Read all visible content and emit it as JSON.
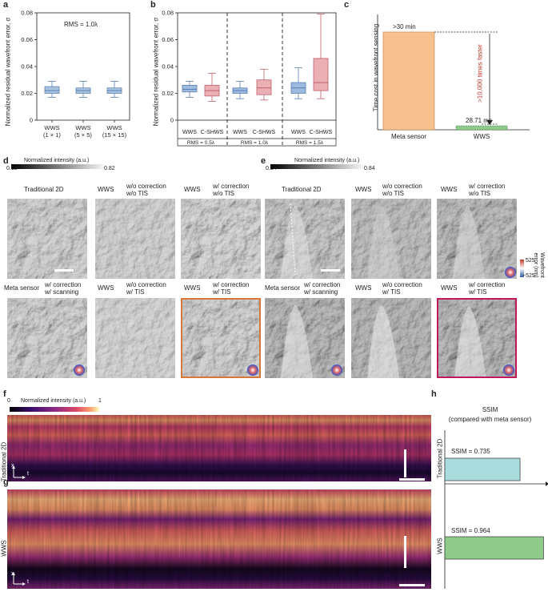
{
  "panel_labels": {
    "a": "a",
    "b": "b",
    "c": "c",
    "d": "d",
    "e": "e",
    "f": "f",
    "g": "g",
    "h": "h"
  },
  "shared": {
    "wfe_ylabel": "Normalized residual wavefront error, σ",
    "yticks": [
      "0",
      "0.02",
      "0.04",
      "0.06",
      "0.08"
    ]
  },
  "panel_a": {
    "rms_note": "RMS = 1.0λ",
    "xticks": [
      {
        "l1": "WWS",
        "l2": "(1 × 1)"
      },
      {
        "l1": "WWS",
        "l2": "(5 × 5)"
      },
      {
        "l1": "WWS",
        "l2": "(15 × 15)"
      }
    ]
  },
  "panel_b": {
    "xticks": [
      "WWS",
      "C-SHWS",
      "WWS",
      "C-SHWS",
      "WWS",
      "C-SHWS"
    ],
    "groups": [
      "RMS = 0.5λ",
      "RMS = 1.0λ",
      "RMS = 1.5λ"
    ]
  },
  "panel_c": {
    "ylabel": "Time cost in wavefront sensing",
    "bar1_label": ">30 min",
    "bar2_label": "28.71 ms",
    "arrow_label": ">10,000 times faster",
    "xticks": [
      "Meta sensor",
      "WWS"
    ]
  },
  "panel_d": {
    "colorbar_title": "Normalized intensity (a.u.)",
    "cbar_min": "0.18",
    "cbar_max": "0.82",
    "top_labels": [
      "Traditional 2D",
      "WWS",
      "w/o correction\nw/o TIS",
      "WWS",
      "w/ correction\nw/o TIS"
    ],
    "bottom_labels": [
      "Meta sensor",
      "w/ correction\nw/ scanning",
      "WWS",
      "w/o correction\nw/ TIS",
      "WWS",
      "w/ correction\nw/ TIS"
    ]
  },
  "panel_e": {
    "colorbar_title": "Normalized intensity (a.u.)",
    "cbar_min": "0.14",
    "cbar_max": "0.84",
    "top_labels": [
      "Traditional 2D",
      "WWS",
      "w/o correction\nw/o TIS",
      "WWS",
      "w/ correction\nw/o TIS"
    ],
    "bottom_labels": [
      "Meta sensor",
      "w/ correction\nw/ scanning",
      "WWS",
      "w/o correction\nw/ TIS",
      "WWS",
      "w/ correction\nw/ TIS"
    ],
    "wf_cbar_title": "Wavefront\nerror (nm)",
    "wf_cbar_max": "525",
    "wf_cbar_min": "−525"
  },
  "panel_f": {
    "colorbar_title": "Normalized intensity (a.u.)",
    "cbar_min": "0",
    "cbar_max": "1",
    "side_label": "Traditional 2D",
    "axis_x": "x",
    "axis_t": "t"
  },
  "panel_g": {
    "side_label": "WWS",
    "axis_x": "x",
    "axis_t": "t"
  },
  "panel_h": {
    "title": "SSIM",
    "subtitle": "(compared with meta sensor)",
    "bars": [
      {
        "label": "Traditional 2D",
        "value_text": "SSIM = 0.735",
        "value": 0.735,
        "color": "#a9dcdc"
      },
      {
        "label": "WWS",
        "value_text": "SSIM = 0.964",
        "value": 0.964,
        "color": "#8fca8a"
      }
    ]
  },
  "chart_data": [
    {
      "type": "box",
      "panel": "a",
      "ylabel": "Normalized residual wavefront error, σ",
      "ylim": [
        0,
        0.08
      ],
      "annotation": "RMS = 1.0λ",
      "categories": [
        "WWS (1 × 1)",
        "WWS (5 × 5)",
        "WWS (15 × 15)"
      ],
      "boxes": [
        {
          "min": 0.017,
          "q1": 0.02,
          "median": 0.022,
          "q3": 0.025,
          "max": 0.029
        },
        {
          "min": 0.017,
          "q1": 0.02,
          "median": 0.022,
          "q3": 0.024,
          "max": 0.029
        },
        {
          "min": 0.017,
          "q1": 0.02,
          "median": 0.022,
          "q3": 0.024,
          "max": 0.029
        }
      ]
    },
    {
      "type": "box",
      "panel": "b",
      "ylabel": "Normalized residual wavefront error, σ",
      "ylim": [
        0,
        0.08
      ],
      "groups": [
        "RMS = 0.5λ",
        "RMS = 1.0λ",
        "RMS = 1.5λ"
      ],
      "categories": [
        "WWS",
        "C-SHWS",
        "WWS",
        "C-SHWS",
        "WWS",
        "C-SHWS"
      ],
      "boxes": [
        {
          "min": 0.017,
          "q1": 0.021,
          "median": 0.023,
          "q3": 0.026,
          "max": 0.029
        },
        {
          "min": 0.014,
          "q1": 0.018,
          "median": 0.022,
          "q3": 0.026,
          "max": 0.035
        },
        {
          "min": 0.016,
          "q1": 0.02,
          "median": 0.022,
          "q3": 0.024,
          "max": 0.029
        },
        {
          "min": 0.015,
          "q1": 0.019,
          "median": 0.024,
          "q3": 0.03,
          "max": 0.038
        },
        {
          "min": 0.016,
          "q1": 0.02,
          "median": 0.024,
          "q3": 0.028,
          "max": 0.039
        },
        {
          "min": 0.016,
          "q1": 0.022,
          "median": 0.028,
          "q3": 0.046,
          "max": 0.079
        }
      ],
      "colors": [
        "#8fb1d8",
        "#e3a1a6"
      ]
    },
    {
      "type": "bar",
      "panel": "c",
      "ylabel": "Time cost in wavefront sensing",
      "categories": [
        "Meta sensor",
        "WWS"
      ],
      "value_labels": [
        ">30 min",
        "28.71 ms"
      ],
      "annotation": ">10,000 times faster",
      "colors": [
        "#f6c08f",
        "#8fca8a"
      ]
    },
    {
      "type": "bar",
      "panel": "h",
      "orientation": "horizontal",
      "title": "SSIM",
      "subtitle": "(compared with meta sensor)",
      "categories": [
        "Traditional 2D",
        "WWS"
      ],
      "values": [
        0.735,
        0.964
      ],
      "colors": [
        "#a9dcdc",
        "#8fca8a"
      ]
    }
  ]
}
